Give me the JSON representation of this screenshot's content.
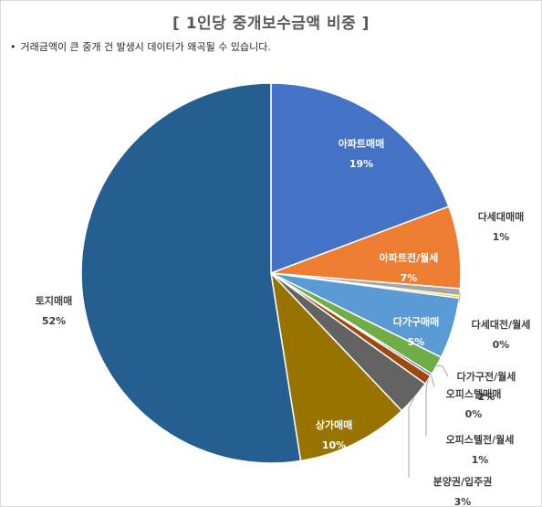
{
  "chart_data": {
    "type": "pie",
    "title": "[ 1인당 중개보수금액 비중 ]",
    "subtitle": "거래금액이 큰 중개 건 발생시 데이터가 왜곡될 수 있습니다.",
    "categories": [
      "아파트매매",
      "아파트전/월세",
      "다세대매매",
      "다세대전/월세",
      "다가구매매",
      "다가구전/월세",
      "오피스텔매매",
      "오피스텔전/월세",
      "분양권/입주권",
      "상가매매",
      "토지매매"
    ],
    "labels": [
      "19%",
      "7%",
      "1%",
      "0%",
      "5%",
      "2%",
      "0%",
      "1%",
      "3%",
      "10%",
      "52%"
    ],
    "values": [
      19.3,
      7.0,
      0.6,
      0.2,
      5.2,
      1.6,
      0.2,
      0.8,
      3.0,
      9.6,
      52.5
    ],
    "colors": [
      "#4472c4",
      "#ed7d31",
      "#a5a5a5",
      "#ffc000",
      "#5b9bd5",
      "#70ad47",
      "#264478",
      "#9e480e",
      "#636363",
      "#997300",
      "#255e91"
    ],
    "legend": "none"
  }
}
